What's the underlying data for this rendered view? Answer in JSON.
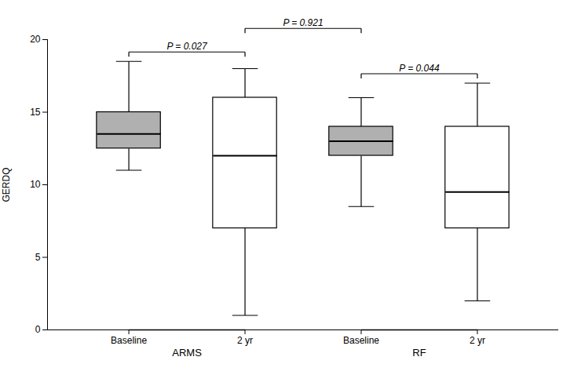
{
  "chart_data": {
    "type": "box",
    "categories": [
      "Baseline",
      "2 yr",
      "Baseline",
      "2 yr"
    ],
    "median": [
      13.5,
      12.0,
      13.0,
      9.5
    ],
    "q1": [
      12.5,
      7.0,
      12.0,
      7.0
    ],
    "q3": [
      15.0,
      16.0,
      14.0,
      14.0
    ],
    "whisker_low": [
      11.0,
      1.0,
      8.5,
      2.0
    ],
    "whisker_high": [
      18.5,
      18.0,
      16.0,
      17.0
    ],
    "colors": [
      "#b0b0b0",
      "#ffffff",
      "#b0b0b0",
      "#ffffff"
    ],
    "ylabel": "GERDQ",
    "ylim": [
      0,
      20
    ],
    "yticks": [
      0,
      5,
      10,
      15,
      20
    ],
    "grid": false,
    "groups": [
      {
        "text": "ARMS",
        "members": [
          0,
          1
        ]
      },
      {
        "text": "RF",
        "members": [
          2,
          3
        ]
      }
    ],
    "annotations": [
      {
        "text": "P = 0.027",
        "pair": [
          0,
          1
        ]
      },
      {
        "text": "P = 0.044",
        "pair": [
          2,
          3
        ]
      },
      {
        "text": "P = 0.921",
        "pair": [
          1,
          2
        ]
      }
    ]
  }
}
